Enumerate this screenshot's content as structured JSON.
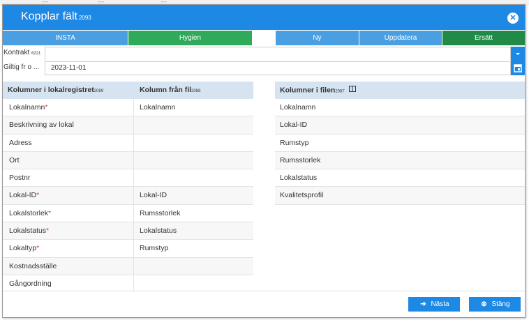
{
  "background": {
    "strip_texts": [
      "—",
      "—",
      "—"
    ]
  },
  "dialog": {
    "title": "Kopplar fält",
    "title_id": "2093",
    "close_icon": "close-circle-icon"
  },
  "toolbar": {
    "insta": "INSTA",
    "hygien": "Hygien",
    "ny": "Ny",
    "uppdatera": "Uppdatera",
    "ersatt": "Ersätt"
  },
  "form": {
    "contract_label": "Kontrakt",
    "contract_id": "6221",
    "contract_value": "",
    "valid_label": "Giltig fr o ...",
    "valid_value": "2023-11-01"
  },
  "left_table": {
    "col1_header": "Kolumner i lokalregistret",
    "col1_id": "2089",
    "col2_header": "Kolumn från fil",
    "col2_id": "2088",
    "rows": [
      {
        "field": "Lokalnamn",
        "required": "*",
        "mapped": "Lokalnamn"
      },
      {
        "field": "Beskrivning av lokal",
        "required": "",
        "mapped": ""
      },
      {
        "field": "Adress",
        "required": "",
        "mapped": ""
      },
      {
        "field": "Ort",
        "required": "",
        "mapped": ""
      },
      {
        "field": "Postnr",
        "required": "",
        "mapped": ""
      },
      {
        "field": "Lokal-ID",
        "required": "*",
        "mapped": "Lokal-ID"
      },
      {
        "field": "Lokalstorlek",
        "required": "*",
        "mapped": "Rumsstorlek"
      },
      {
        "field": "Lokalstatus",
        "required": "*",
        "mapped": "Lokalstatus"
      },
      {
        "field": "Lokaltyp",
        "required": "*",
        "mapped": "Rumstyp"
      },
      {
        "field": "Kostnadsställe",
        "required": "",
        "mapped": ""
      },
      {
        "field": "Gångordning",
        "required": "",
        "mapped": ""
      }
    ]
  },
  "right_table": {
    "header": "Kolumner i filen",
    "header_id": "2087",
    "rows": [
      "Lokalnamn",
      "Lokal-ID",
      "Rumstyp",
      "Rumsstorlek",
      "Lokalstatus",
      "Kvalitetsprofil"
    ]
  },
  "footer": {
    "next": "Nästa",
    "close": "Stäng"
  },
  "colors": {
    "title_bar": "#1e88e5",
    "tab_blue": "#4a9ee2",
    "tab_green": "#2eaa5a",
    "tab_dark_green": "#218a47",
    "header_bg": "#d6e3f1",
    "required": "#e53935"
  }
}
